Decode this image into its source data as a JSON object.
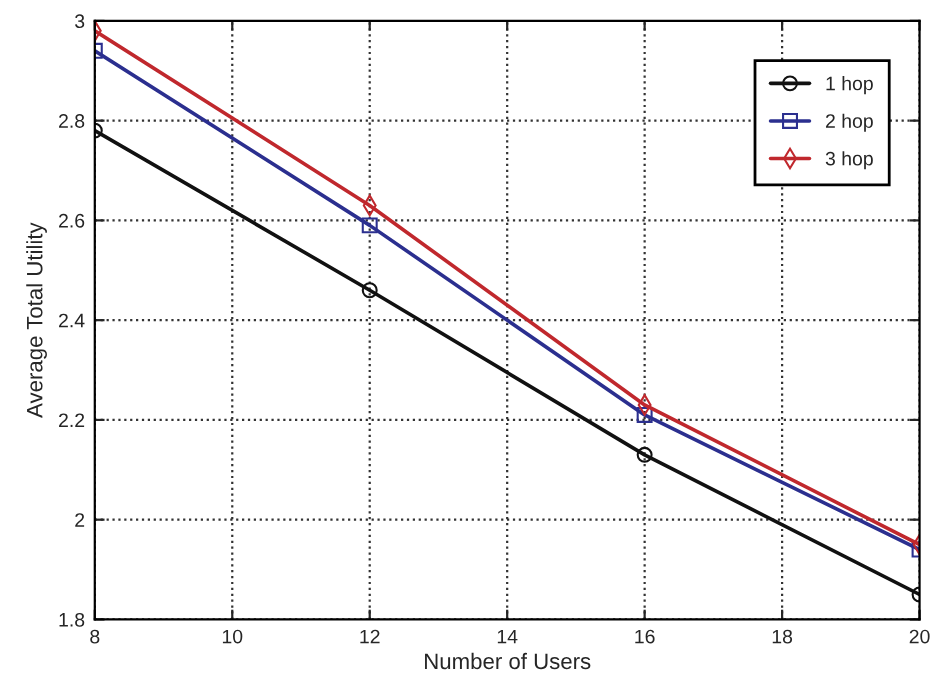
{
  "chart_data": {
    "type": "line",
    "xlabel": "Number of Users",
    "ylabel": "Average Total Utility",
    "x": [
      8,
      12,
      16,
      20
    ],
    "series": [
      {
        "name": "1 hop",
        "color": "#111111",
        "marker": "circle",
        "values": [
          2.78,
          2.46,
          2.13,
          1.85
        ]
      },
      {
        "name": "2 hop",
        "color": "#2b2f8f",
        "marker": "square",
        "values": [
          2.94,
          2.59,
          2.21,
          1.94
        ]
      },
      {
        "name": "3 hop",
        "color": "#c0282d",
        "marker": "diamond",
        "values": [
          2.98,
          2.63,
          2.23,
          1.95
        ]
      }
    ],
    "xlim": [
      8,
      20
    ],
    "xticks": [
      8,
      10,
      12,
      14,
      16,
      18,
      20
    ],
    "ylim": [
      1.8,
      3
    ],
    "yticks": [
      1.8,
      2,
      2.2,
      2.4,
      2.6,
      2.8,
      3
    ],
    "grid": true,
    "legend": "top right",
    "line_style": "solid"
  }
}
